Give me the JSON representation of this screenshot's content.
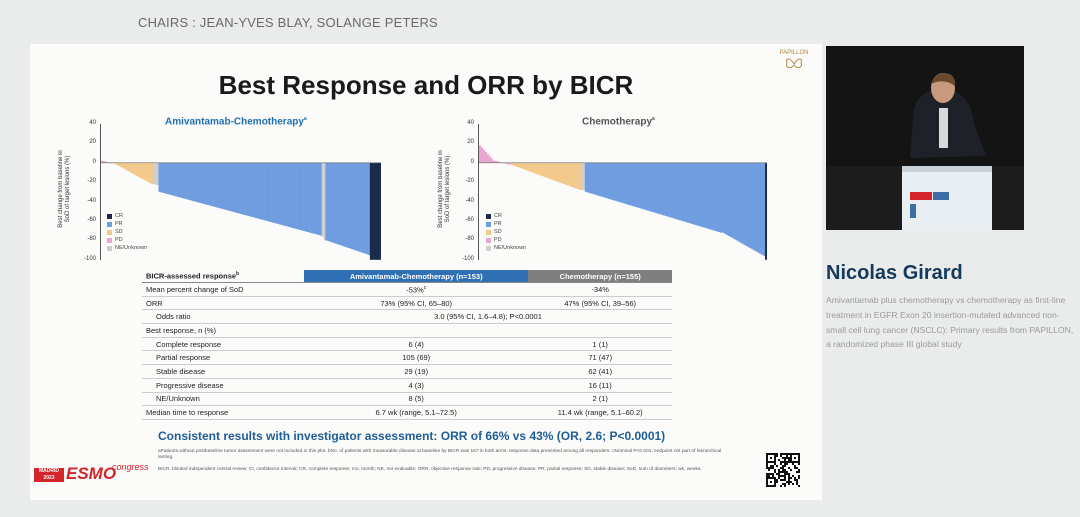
{
  "header": {
    "chairs": "CHAIRS : JEAN-YVES BLAY, SOLANGE PETERS"
  },
  "slide": {
    "title": "Best Response and ORR by BICR",
    "logo_text": "PAPILLON",
    "panel_left_title": "Amivantamab-Chemotherapy",
    "panel_left_sup": "a",
    "panel_right_title": "Chemotherapy",
    "panel_right_sup": "a",
    "y_axis_label_1": "Best change from baseline in",
    "y_axis_label_2": "SoD of target lesions (%)",
    "y_ticks": [
      "40",
      "20",
      "0",
      "-20",
      "-40",
      "-60",
      "-80",
      "-100"
    ],
    "legend": [
      {
        "label": "CR",
        "color": "#1b2a4a"
      },
      {
        "label": "PR",
        "color": "#6f9de0"
      },
      {
        "label": "SD",
        "color": "#f3c98c"
      },
      {
        "label": "PD",
        "color": "#e9a6cf"
      },
      {
        "label": "NE/Unknown",
        "color": "#cfcfcf"
      }
    ],
    "colors": {
      "cr": "#1b2a4a",
      "pr": "#6f9de0",
      "sd": "#f3c98c",
      "pd": "#e9a6cf",
      "ne": "#cfcfcf",
      "amiv_header": "#2f6fb3",
      "chemo_header": "#7f7f7f",
      "accent_text": "#1f5d96",
      "speaker_name": "#163a5c"
    },
    "table": {
      "header": {
        "col0": "BICR-assessed response",
        "col0_sup": "b",
        "col1": "Amivantamab-Chemotherapy (n=153)",
        "col2": "Chemotherapy (n=155)"
      },
      "rows": [
        {
          "label": "Mean percent change of SoD",
          "a": "-53%",
          "a_sup": "c",
          "b": "-34%"
        },
        {
          "label": "ORR",
          "a": "73% (95% CI, 65–80)",
          "b": "47% (95% CI, 39–56)"
        },
        {
          "label": "Odds ratio",
          "merged": "3.0 (95% CI, 1.6–4.8); P<0.0001"
        },
        {
          "label": "Best response, n (%)",
          "a": "",
          "b": ""
        },
        {
          "label": "Complete response",
          "a": "6 (4)",
          "b": "1 (1)"
        },
        {
          "label": "Partial response",
          "a": "105 (69)",
          "b": "71 (47)"
        },
        {
          "label": "Stable disease",
          "a": "29 (19)",
          "b": "62 (41)"
        },
        {
          "label": "Progressive disease",
          "a": "4 (3)",
          "b": "16 (11)"
        },
        {
          "label": "NE/Unknown",
          "a": "8 (5)",
          "b": "2 (1)"
        },
        {
          "label": "Median time to response",
          "a": "6.7 wk (range, 5.1–72.5)",
          "b": "11.4 wk (range, 5.1–60.2)"
        }
      ]
    },
    "consistent": "Consistent results with investigator assessment: ORR of 66% vs 43% (OR, 2.6; P<0.0001)",
    "footnote1": "aPatients without postbaseline tumor assessment were not included in this plot. bNo. of patients with measurable disease at baseline by BICR was 157 in both arms; response data presented among all responders. cNominal P<0.001, endpoint not part of hierarchical testing.",
    "footnote2": "BICR, blinded independent central review; CI, confidence interval; CR, complete response; mo, month; NE, not evaluable; ORR, objective response rate; PD, progressive disease; PR, partial response; SD, stable disease; SoD, sum of diameters; wk, weeks.",
    "esmo": {
      "city": "MADRID",
      "year": "2023",
      "brand": "ESMO",
      "suffix": "congress"
    }
  },
  "sidebar": {
    "speaker_name": "Nicolas Girard",
    "talk_title": "Amivantamab plus chemotherapy vs chemotherapy as first-line treatment in EGFR Exon 20 insertion-mutated advanced non-small cell lung cancer (NSCLC): Primary results from PAPILLON, a randomized phase III global study"
  }
}
